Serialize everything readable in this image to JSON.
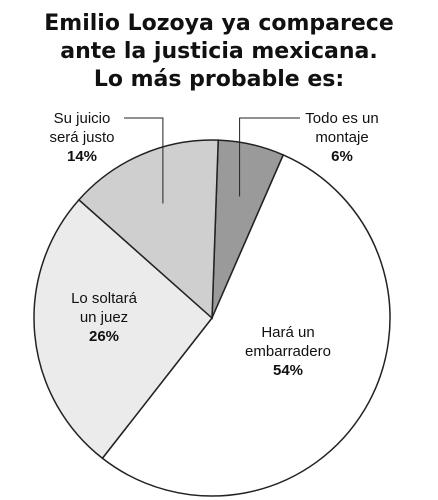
{
  "chart_data": {
    "type": "pie",
    "title_lines": [
      "Emilio Lozoya ya comparece",
      "ante la justicia mexicana.",
      "Lo más probable es:"
    ],
    "slices": [
      {
        "label_lines": [
          "Todo es un",
          "montaje"
        ],
        "value": 6,
        "value_label": "6%",
        "color": "#9a9a9a"
      },
      {
        "label_lines": [
          "Hará un",
          "embarradero"
        ],
        "value": 54,
        "value_label": "54%",
        "color": "#ffffff"
      },
      {
        "label_lines": [
          "Lo soltará",
          "un juez"
        ],
        "value": 26,
        "value_label": "26%",
        "color": "#ebebeb"
      },
      {
        "label_lines": [
          "Su juicio",
          "será justo"
        ],
        "value": 14,
        "value_label": "14%",
        "color": "#cfcfcf"
      }
    ]
  }
}
